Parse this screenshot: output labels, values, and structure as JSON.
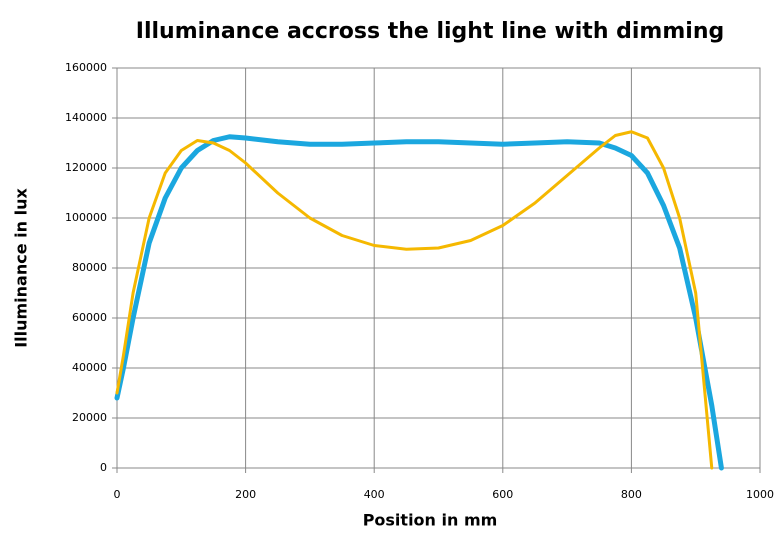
{
  "chart_data": {
    "type": "line",
    "title": "Illuminance accross the light line  with dimming",
    "x_label": "Position in mm",
    "y_label": "Illuminance in lux",
    "x": [
      0,
      10,
      25,
      50,
      75,
      100,
      125,
      150,
      175,
      200,
      250,
      300,
      350,
      400,
      450,
      500,
      550,
      600,
      650,
      700,
      750,
      775,
      800,
      825,
      850,
      875,
      900,
      925,
      940
    ],
    "series": [
      {
        "color": "#1ba7df",
        "values": [
          28000,
          40000,
          60000,
          90000,
          108000,
          120000,
          127000,
          131000,
          132500,
          132000,
          130500,
          129500,
          129500,
          130000,
          130500,
          130500,
          130000,
          129500,
          130000,
          130500,
          130000,
          128000,
          125000,
          118000,
          105000,
          88000,
          60000,
          25000,
          0
        ]
      },
      {
        "color": "#f5b800",
        "values": [
          30000,
          45000,
          70000,
          100000,
          118000,
          127000,
          131000,
          130000,
          127000,
          122000,
          110000,
          100000,
          93000,
          89000,
          87500,
          88000,
          91000,
          97000,
          106000,
          117000,
          128000,
          133000,
          134500,
          132000,
          120000,
          100000,
          70000,
          0,
          null
        ]
      }
    ],
    "xlim": [
      0,
      1000
    ],
    "xticks": [
      0,
      200,
      400,
      600,
      800,
      1000
    ],
    "ylim": [
      0,
      160000
    ],
    "yticks": [
      0,
      20000,
      40000,
      60000,
      80000,
      100000,
      120000,
      140000,
      160000
    ],
    "grid": true
  }
}
